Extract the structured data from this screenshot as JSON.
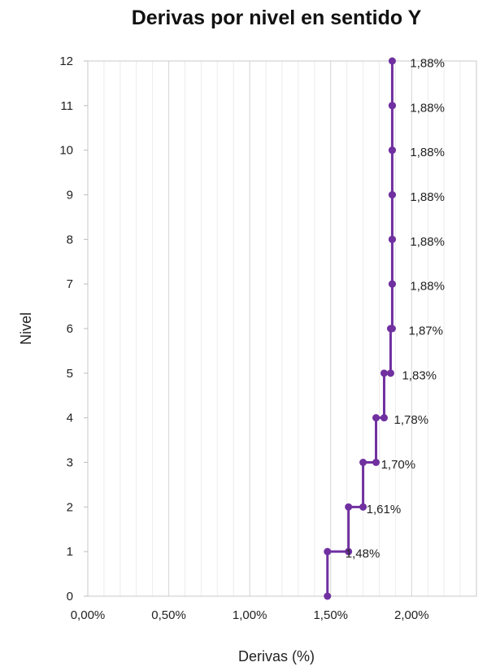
{
  "chart_data": {
    "type": "line",
    "title": "Derivas por nivel en sentido Y",
    "xlabel": "Derivas (%)",
    "ylabel": "Nivel",
    "xlim": [
      0,
      0.024
    ],
    "x_ticks": [
      0,
      0.005,
      0.01,
      0.015,
      0.02
    ],
    "x_tick_labels": [
      "0,00%",
      "0,50%",
      "1,00%",
      "1,50%",
      "2,00%"
    ],
    "ylim": [
      0,
      12
    ],
    "y_ticks": [
      0,
      1,
      2,
      3,
      4,
      5,
      6,
      7,
      8,
      9,
      10,
      11,
      12
    ],
    "y_tick_labels": [
      "0",
      "1",
      "2",
      "3",
      "4",
      "5",
      "6",
      "7",
      "8",
      "9",
      "10",
      "11",
      "12"
    ],
    "grid": true,
    "legend": "none",
    "color": "#7030a0",
    "levels": [
      0,
      1,
      2,
      3,
      4,
      5,
      6,
      7,
      8,
      9,
      10,
      11,
      12
    ],
    "drifts": [
      0.0148,
      0.0161,
      0.017,
      0.0178,
      0.0183,
      0.0187,
      0.0188,
      0.0188,
      0.0188,
      0.0188,
      0.0188,
      0.0188
    ],
    "drift_labels": [
      "1,48%",
      "1,61%",
      "1,70%",
      "1,78%",
      "1,83%",
      "1,87%",
      "1,88%",
      "1,88%",
      "1,88%",
      "1,88%",
      "1,88%",
      "1,88%"
    ],
    "series": [
      {
        "x": [
          0.0148,
          0.0148,
          0.0161,
          0.0161,
          0.017,
          0.017,
          0.0178,
          0.0178,
          0.0183,
          0.0183,
          0.0187,
          0.0187,
          0.0188,
          0.0188,
          0.0188,
          0.0188,
          0.0188,
          0.0188,
          0.0188,
          0.0188,
          0.0188,
          0.0188,
          0.0188,
          0.0188
        ],
        "y": [
          0,
          1,
          1,
          2,
          2,
          3,
          3,
          4,
          4,
          5,
          5,
          6,
          6,
          7,
          7,
          8,
          8,
          9,
          9,
          10,
          10,
          11,
          11,
          12
        ]
      }
    ]
  }
}
